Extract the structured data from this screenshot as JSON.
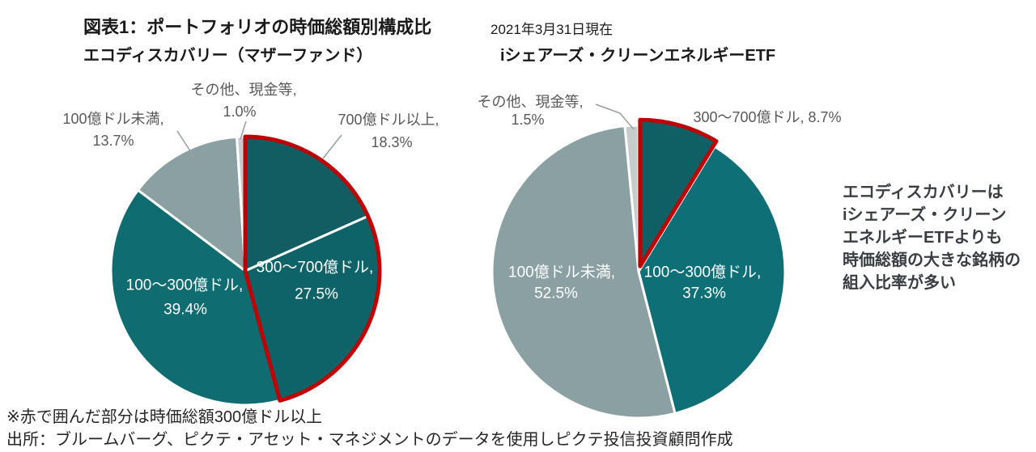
{
  "header": {
    "title": "図表1：ポートフォリオの時価総額別構成比",
    "date": "2021年3月31日現在"
  },
  "chart_data": [
    {
      "type": "pie",
      "title": "エコディスカバリー（マザーファンド）",
      "unit": "%",
      "start_angle_deg": 0,
      "direction": "clockwise",
      "slices": [
        {
          "label": "700億ドル以上",
          "value": 18.3,
          "color": "#115D61",
          "red_outline": true
        },
        {
          "label": "300〜700億ドル",
          "value": 27.5,
          "color": "#0E6368",
          "red_outline": true
        },
        {
          "label": "100〜300億ドル",
          "value": 39.4,
          "color": "#0F6C71",
          "red_outline": false
        },
        {
          "label": "100億ドル未満",
          "value": 13.7,
          "color": "#8BA0A3",
          "red_outline": false
        },
        {
          "label": "その他、現金等",
          "value": 1.0,
          "color": "#C7CBCC",
          "red_outline": false
        }
      ]
    },
    {
      "type": "pie",
      "title": "iシェアーズ・クリーンエネルギーETF",
      "unit": "%",
      "start_angle_deg": 0,
      "direction": "clockwise",
      "slices": [
        {
          "label": "300〜700億ドル",
          "value": 8.7,
          "color": "#0F6064",
          "red_outline": true,
          "exploded": true
        },
        {
          "label": "100〜300億ドル",
          "value": 37.3,
          "color": "#0E7076",
          "red_outline": false
        },
        {
          "label": "100億ドル未満",
          "value": 52.5,
          "color": "#8BA0A3",
          "red_outline": false
        },
        {
          "label": "その他、現金等",
          "value": 1.5,
          "color": "#C7CBCC",
          "red_outline": false
        }
      ]
    }
  ],
  "annotation": {
    "lines": [
      "エコディスカバリーは",
      "iシェアーズ・クリーン",
      "エネルギーETFよりも",
      "時価総額の大きな銘柄の",
      "組入比率が多い"
    ]
  },
  "footnotes": {
    "note": "※赤で囲んだ部分は時価総額300億ドル以上",
    "source": "出所：ブルームバーグ、ピクテ・アセット・マネジメントのデータを使用しピクテ投信投資顧問作成"
  },
  "colors": {
    "highlight_outline": "#C00000",
    "slice_divider": "#FFFFFF",
    "outside_label": "#595959",
    "leader_line": "#9AA0A2"
  }
}
